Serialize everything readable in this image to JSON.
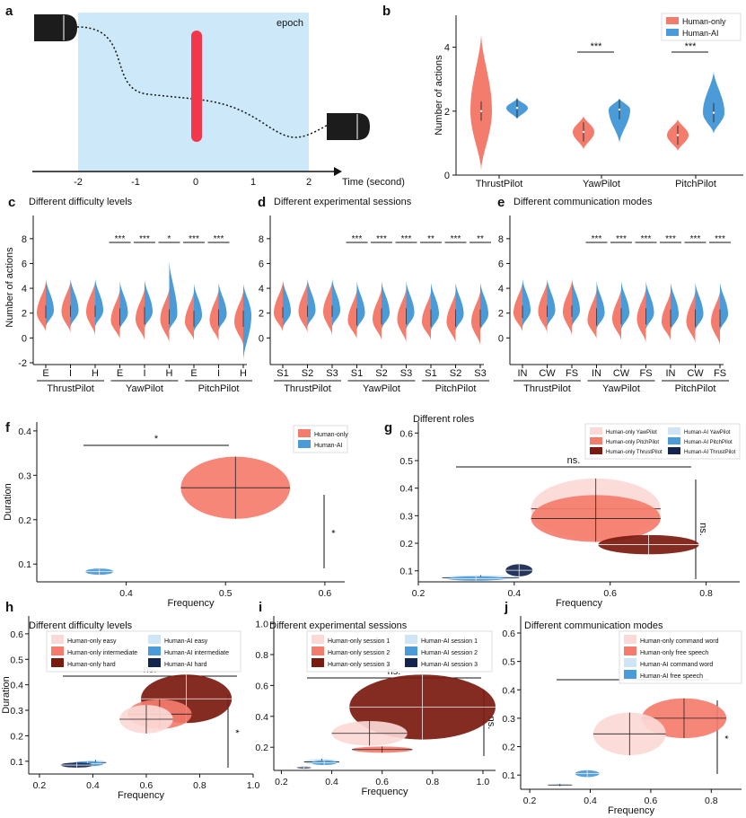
{
  "panel_letters": {
    "a": "a",
    "b": "b",
    "c": "c",
    "d": "d",
    "e": "e",
    "f": "f",
    "g": "g",
    "h": "h",
    "i": "i",
    "j": "j"
  },
  "colors": {
    "human_only": "#f47c6d",
    "human_ai": "#4a9bd8",
    "epoch_bg": "#cde9f9",
    "red_bar": "#f2374d",
    "light_pink": "#fbd9d6",
    "dark_red": "#7b1a0f",
    "light_blue": "#cfe4f5",
    "navy": "#13244f"
  },
  "chart_data": [
    {
      "id": "a",
      "type": "diagram",
      "epoch_label": "epoch",
      "xlabel": "Time (second)",
      "ticks": [
        "-2",
        "-1",
        "0",
        "1",
        "2"
      ]
    },
    {
      "id": "b",
      "type": "violin",
      "ylabel": "Number of actions",
      "ylim": [
        0,
        5
      ],
      "yticks": [
        "0",
        "2",
        "4"
      ],
      "categories": [
        "ThrustPilot",
        "YawPilot",
        "PitchPilot"
      ],
      "legend": [
        "Human-only",
        "Human-AI"
      ],
      "series": [
        {
          "name": "Human-only",
          "median": [
            2.0,
            1.35,
            1.25
          ],
          "range": [
            [
              0.15,
              4.4
            ],
            [
              0.8,
              1.85
            ],
            [
              0.75,
              1.75
            ]
          ]
        },
        {
          "name": "Human-AI",
          "median": [
            2.1,
            2.05,
            1.95
          ],
          "range": [
            [
              1.75,
              2.4
            ],
            [
              1.0,
              2.4
            ],
            [
              1.3,
              3.25
            ]
          ]
        }
      ],
      "significance": [
        {
          "category": "YawPilot",
          "label": "***"
        },
        {
          "category": "PitchPilot",
          "label": "***"
        }
      ]
    },
    {
      "id": "c",
      "type": "split-violin",
      "title": "Different difficulty levels",
      "ylabel": "Number of actions",
      "ylim": [
        -2,
        9
      ],
      "yticks": [
        "-2",
        "0",
        "2",
        "4",
        "6",
        "8"
      ],
      "subcategories": [
        "E",
        "I",
        "H",
        "E",
        "I",
        "H",
        "E",
        "I",
        "H"
      ],
      "groups": [
        "ThrustPilot",
        "YawPilot",
        "PitchPilot"
      ],
      "human_only_median": [
        2.0,
        2.1,
        2.1,
        1.4,
        1.5,
        1.5,
        1.3,
        1.4,
        1.3
      ],
      "human_ai_median": [
        2.2,
        2.2,
        2.2,
        2.0,
        2.1,
        1.9,
        1.8,
        1.9,
        1.8
      ],
      "significance": [
        "",
        "",
        "",
        "***",
        "***",
        "*",
        "***",
        "***",
        ""
      ]
    },
    {
      "id": "d",
      "type": "split-violin",
      "title": "Different experimental sessions",
      "ylim": [
        -2,
        9
      ],
      "yticks": [
        "0",
        "2",
        "4",
        "6",
        "8"
      ],
      "subcategories": [
        "S1",
        "S2",
        "S3",
        "S1",
        "S2",
        "S3",
        "S1",
        "S2",
        "S3"
      ],
      "groups": [
        "ThrustPilot",
        "YawPilot",
        "PitchPilot"
      ],
      "human_only_median": [
        2.0,
        2.1,
        2.1,
        1.4,
        1.5,
        1.5,
        1.3,
        1.3,
        1.3
      ],
      "human_ai_median": [
        2.1,
        2.2,
        2.2,
        2.0,
        2.0,
        2.0,
        1.9,
        1.9,
        1.9
      ],
      "significance": [
        "",
        "",
        "",
        "***",
        "***",
        "***",
        "**",
        "***",
        "**"
      ]
    },
    {
      "id": "e",
      "type": "split-violin",
      "title": "Different communication modes",
      "ylim": [
        -2,
        9
      ],
      "yticks": [
        "0",
        "2",
        "4",
        "6",
        "8"
      ],
      "subcategories": [
        "IN",
        "CW",
        "FS",
        "IN",
        "CW",
        "FS",
        "IN",
        "CW",
        "FS"
      ],
      "groups": [
        "ThrustPilot",
        "YawPilot",
        "PitchPilot"
      ],
      "human_only_median": [
        2.0,
        2.1,
        2.1,
        1.4,
        1.5,
        1.5,
        1.3,
        1.3,
        1.3
      ],
      "human_ai_median": [
        2.2,
        2.2,
        2.2,
        2.0,
        2.0,
        2.0,
        1.9,
        1.9,
        1.9
      ],
      "significance": [
        "",
        "",
        "",
        "***",
        "***",
        "***",
        "***",
        "***",
        "***"
      ]
    },
    {
      "id": "f",
      "type": "ellipse-scatter",
      "xlabel": "Frequency",
      "ylabel": "Duration",
      "xlim": [
        0.31,
        0.62
      ],
      "ylim": [
        0.06,
        0.42
      ],
      "xticks": [
        "0.4",
        "0.5",
        "0.6"
      ],
      "yticks": [
        "0.1",
        "0.2",
        "0.3",
        "0.4"
      ],
      "legend": [
        "Human-only",
        "Human-AI"
      ],
      "points": [
        {
          "name": "Human-only",
          "x": 0.51,
          "y": 0.272,
          "sx": 0.055,
          "sy": 0.07
        },
        {
          "name": "Human-AI",
          "x": 0.373,
          "y": 0.083,
          "sx": 0.014,
          "sy": 0.007
        }
      ],
      "significance": {
        "x": "*",
        "y": "*"
      }
    },
    {
      "id": "g",
      "type": "ellipse-scatter",
      "title": "Different roles",
      "xlabel": "Frequency",
      "xlim": [
        0.2,
        0.87
      ],
      "ylim": [
        0.06,
        0.64
      ],
      "xticks": [
        "0.2",
        "0.4",
        "0.6",
        "0.8"
      ],
      "yticks": [
        "0.1",
        "0.2",
        "0.3",
        "0.4",
        "0.5",
        "0.6"
      ],
      "legend": [
        "Human-only YawPilot",
        "Human-only PitchPilot",
        "Human-only ThrustPilot",
        "Human-AI YawPilot",
        "Human-AI PitchPilot",
        "Human-AI ThrustPilot"
      ],
      "points": [
        {
          "name": "Human-only YawPilot",
          "x": 0.57,
          "y": 0.325,
          "sx": 0.135,
          "sy": 0.11
        },
        {
          "name": "Human-only PitchPilot",
          "x": 0.57,
          "y": 0.29,
          "sx": 0.135,
          "sy": 0.085
        },
        {
          "name": "Human-only ThrustPilot",
          "x": 0.68,
          "y": 0.195,
          "sx": 0.105,
          "sy": 0.035
        },
        {
          "name": "Human-AI YawPilot",
          "x": 0.33,
          "y": 0.075,
          "sx": 0.08,
          "sy": 0.009
        },
        {
          "name": "Human-AI PitchPilot",
          "x": 0.32,
          "y": 0.072,
          "sx": 0.06,
          "sy": 0.008
        },
        {
          "name": "Human-AI ThrustPilot",
          "x": 0.41,
          "y": 0.102,
          "sx": 0.028,
          "sy": 0.022
        }
      ],
      "significance": {
        "x": "ns.",
        "y": "ns."
      }
    },
    {
      "id": "h",
      "type": "ellipse-scatter",
      "title": "Different difficulty levels",
      "xlabel": "Frequency",
      "ylabel": "Duration",
      "xlim": [
        0.16,
        1.0
      ],
      "ylim": [
        0.05,
        0.67
      ],
      "xticks": [
        "0.2",
        "0.4",
        "0.6",
        "0.8",
        "1.0"
      ],
      "yticks": [
        "0.1",
        "0.2",
        "0.3",
        "0.4",
        "0.5",
        "0.6"
      ],
      "legend": [
        "Human-only easy",
        "Human-only intermediate",
        "Human-only hard",
        "Human-AI easy",
        "Human-AI intermediate",
        "Human-AI hard"
      ],
      "points": [
        {
          "name": "Human-only hard",
          "x": 0.75,
          "y": 0.345,
          "sx": 0.17,
          "sy": 0.095
        },
        {
          "name": "Human-only intermediate",
          "x": 0.65,
          "y": 0.285,
          "sx": 0.12,
          "sy": 0.058
        },
        {
          "name": "Human-only easy",
          "x": 0.6,
          "y": 0.265,
          "sx": 0.1,
          "sy": 0.056
        },
        {
          "name": "Human-AI easy",
          "x": 0.41,
          "y": 0.095,
          "sx": 0.04,
          "sy": 0.01
        },
        {
          "name": "Human-AI intermediate",
          "x": 0.38,
          "y": 0.09,
          "sx": 0.06,
          "sy": 0.01
        },
        {
          "name": "Human-AI hard",
          "x": 0.34,
          "y": 0.085,
          "sx": 0.06,
          "sy": 0.01
        }
      ],
      "significance": {
        "x": "ns.",
        "y": "*"
      }
    },
    {
      "id": "i",
      "type": "ellipse-scatter",
      "title": "Different experimental sessions",
      "xlabel": "Frequency",
      "xlim": [
        0.17,
        1.05
      ],
      "ylim": [
        0.05,
        1.05
      ],
      "xticks": [
        "0.2",
        "0.4",
        "0.6",
        "0.8",
        "1.0"
      ],
      "yticks": [
        "0.2",
        "0.4",
        "0.6",
        "0.8",
        "1.0"
      ],
      "legend": [
        "Human-only session 1",
        "Human-only session 2",
        "Human-only session 3",
        "Human-AI session 1",
        "Human-AI session 2",
        "Human-AI session 3"
      ],
      "points": [
        {
          "name": "Human-only session 3",
          "x": 0.76,
          "y": 0.46,
          "sx": 0.29,
          "sy": 0.21
        },
        {
          "name": "Human-only session 1",
          "x": 0.55,
          "y": 0.29,
          "sx": 0.15,
          "sy": 0.08
        },
        {
          "name": "Human-only session 2",
          "x": 0.6,
          "y": 0.185,
          "sx": 0.12,
          "sy": 0.02
        },
        {
          "name": "Human-AI session 1",
          "x": 0.36,
          "y": 0.105,
          "sx": 0.07,
          "sy": 0.02
        },
        {
          "name": "Human-AI session 2",
          "x": 0.37,
          "y": 0.1,
          "sx": 0.05,
          "sy": 0.015
        },
        {
          "name": "Human-AI session 3",
          "x": 0.29,
          "y": 0.068,
          "sx": 0.03,
          "sy": 0.007
        }
      ],
      "significance": {
        "x": "ns.",
        "y": "ns."
      }
    },
    {
      "id": "j",
      "type": "ellipse-scatter",
      "title": "Different communication modes",
      "xlabel": "Frequency",
      "xlim": [
        0.17,
        0.9
      ],
      "ylim": [
        0.05,
        0.66
      ],
      "xticks": [
        "0.2",
        "0.4",
        "0.6",
        "0.8"
      ],
      "yticks": [
        "0.1",
        "0.2",
        "0.3",
        "0.4",
        "0.5",
        "0.6"
      ],
      "legend": [
        "Human-only command word",
        "Human-only free speech",
        "Human-AI command word",
        "Human-AI free speech"
      ],
      "points": [
        {
          "name": "Human-only free speech",
          "x": 0.71,
          "y": 0.3,
          "sx": 0.14,
          "sy": 0.07
        },
        {
          "name": "Human-only command word",
          "x": 0.53,
          "y": 0.245,
          "sx": 0.12,
          "sy": 0.075
        },
        {
          "name": "Human-AI free speech",
          "x": 0.39,
          "y": 0.105,
          "sx": 0.04,
          "sy": 0.012
        },
        {
          "name": "Human-AI command word",
          "x": 0.3,
          "y": 0.065,
          "sx": 0.04,
          "sy": 0.004
        }
      ],
      "significance": {
        "x": "ns.",
        "y": "*"
      }
    }
  ]
}
